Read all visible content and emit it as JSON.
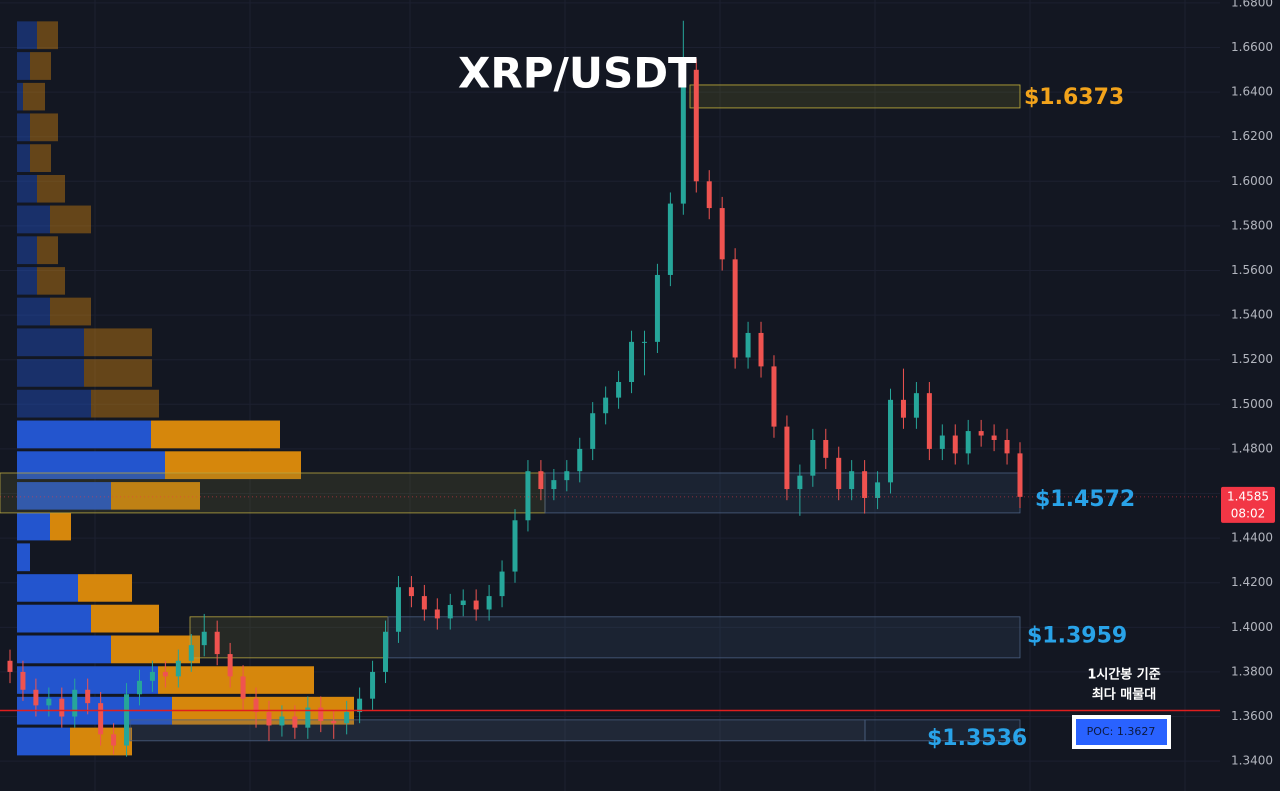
{
  "chart_data": {
    "type": "candlestick",
    "title": "XRP/USDT",
    "ylim": [
      1.3266,
      1.6813
    ],
    "yticks": [
      {
        "value": 1.34,
        "label": "1.3400"
      },
      {
        "value": 1.36,
        "label": "1.3600"
      },
      {
        "value": 1.38,
        "label": "1.3800"
      },
      {
        "value": 1.4,
        "label": "1.4000"
      },
      {
        "value": 1.42,
        "label": "1.4200"
      },
      {
        "value": 1.44,
        "label": "1.4400"
      },
      {
        "value": 1.46,
        "label": "1.4600"
      },
      {
        "value": 1.48,
        "label": "1.4800"
      },
      {
        "value": 1.5,
        "label": "1.5000"
      },
      {
        "value": 1.52,
        "label": "1.5200"
      },
      {
        "value": 1.54,
        "label": "1.5400"
      },
      {
        "value": 1.56,
        "label": "1.5600"
      },
      {
        "value": 1.58,
        "label": "1.5800"
      },
      {
        "value": 1.6,
        "label": "1.6000"
      },
      {
        "value": 1.62,
        "label": "1.6200"
      },
      {
        "value": 1.64,
        "label": "1.6400"
      },
      {
        "value": 1.66,
        "label": "1.6600"
      },
      {
        "value": 1.68,
        "label": "1.6800"
      }
    ],
    "up_color": "#26a69a",
    "down_color": "#ef5350",
    "open": [
      1.385,
      1.38,
      1.372,
      1.365,
      1.368,
      1.36,
      1.372,
      1.366,
      1.352,
      1.347,
      1.37,
      1.376,
      1.38,
      1.378,
      1.385,
      1.392,
      1.398,
      1.388,
      1.378,
      1.368,
      1.362,
      1.356,
      1.36,
      1.355,
      1.364,
      1.358,
      1.357,
      1.362,
      1.368,
      1.38,
      1.398,
      1.418,
      1.414,
      1.408,
      1.404,
      1.41,
      1.412,
      1.408,
      1.414,
      1.425,
      1.448,
      1.47,
      1.462,
      1.466,
      1.47,
      1.48,
      1.496,
      1.503,
      1.51,
      1.528,
      1.528,
      1.558,
      1.59,
      1.65,
      1.6,
      1.588,
      1.565,
      1.521,
      1.532,
      1.517,
      1.49,
      1.462,
      1.468,
      1.484,
      1.476,
      1.462,
      1.47,
      1.458,
      1.465,
      1.502,
      1.494,
      1.505,
      1.48,
      1.486,
      1.478,
      1.488,
      1.486,
      1.484,
      1.478
    ],
    "high": [
      1.39,
      1.385,
      1.377,
      1.373,
      1.373,
      1.377,
      1.377,
      1.371,
      1.357,
      1.375,
      1.381,
      1.385,
      1.385,
      1.39,
      1.397,
      1.406,
      1.403,
      1.393,
      1.383,
      1.373,
      1.367,
      1.365,
      1.365,
      1.369,
      1.369,
      1.363,
      1.367,
      1.373,
      1.385,
      1.403,
      1.423,
      1.423,
      1.419,
      1.413,
      1.415,
      1.417,
      1.417,
      1.419,
      1.43,
      1.453,
      1.475,
      1.475,
      1.471,
      1.475,
      1.485,
      1.501,
      1.508,
      1.515,
      1.533,
      1.533,
      1.563,
      1.595,
      1.672,
      1.655,
      1.605,
      1.593,
      1.57,
      1.537,
      1.537,
      1.522,
      1.495,
      1.473,
      1.489,
      1.489,
      1.481,
      1.475,
      1.475,
      1.47,
      1.507,
      1.516,
      1.51,
      1.51,
      1.491,
      1.491,
      1.493,
      1.493,
      1.491,
      1.489,
      1.483
    ],
    "low": [
      1.375,
      1.367,
      1.36,
      1.36,
      1.355,
      1.355,
      1.361,
      1.347,
      1.343,
      1.342,
      1.365,
      1.371,
      1.373,
      1.373,
      1.38,
      1.387,
      1.383,
      1.373,
      1.363,
      1.355,
      1.349,
      1.351,
      1.35,
      1.35,
      1.353,
      1.35,
      1.352,
      1.357,
      1.363,
      1.375,
      1.393,
      1.409,
      1.403,
      1.399,
      1.399,
      1.405,
      1.403,
      1.403,
      1.409,
      1.42,
      1.443,
      1.457,
      1.457,
      1.461,
      1.465,
      1.475,
      1.491,
      1.498,
      1.505,
      1.513,
      1.523,
      1.553,
      1.585,
      1.595,
      1.583,
      1.56,
      1.516,
      1.516,
      1.512,
      1.485,
      1.457,
      1.45,
      1.463,
      1.471,
      1.457,
      1.457,
      1.451,
      1.453,
      1.46,
      1.489,
      1.489,
      1.475,
      1.475,
      1.473,
      1.473,
      1.481,
      1.479,
      1.473,
      1.4535
    ],
    "close": [
      1.38,
      1.372,
      1.365,
      1.368,
      1.36,
      1.372,
      1.366,
      1.352,
      1.347,
      1.37,
      1.376,
      1.38,
      1.378,
      1.385,
      1.392,
      1.398,
      1.388,
      1.378,
      1.368,
      1.362,
      1.356,
      1.36,
      1.355,
      1.364,
      1.358,
      1.357,
      1.362,
      1.368,
      1.38,
      1.398,
      1.418,
      1.414,
      1.408,
      1.404,
      1.41,
      1.412,
      1.408,
      1.414,
      1.425,
      1.448,
      1.47,
      1.462,
      1.466,
      1.47,
      1.48,
      1.496,
      1.503,
      1.51,
      1.528,
      1.528,
      1.558,
      1.59,
      1.65,
      1.6,
      1.588,
      1.565,
      1.521,
      1.532,
      1.517,
      1.49,
      1.462,
      1.468,
      1.484,
      1.476,
      1.462,
      1.47,
      1.458,
      1.465,
      1.502,
      1.494,
      1.505,
      1.48,
      1.486,
      1.478,
      1.488,
      1.486,
      1.484,
      1.478,
      1.4585
    ],
    "volume_profile": {
      "price_bins": [
        1.3419,
        1.3557,
        1.3695,
        1.3832,
        1.397,
        1.4108,
        1.4245,
        1.4383,
        1.4521,
        1.4658,
        1.4796,
        1.4934,
        1.5072,
        1.5209,
        1.5347,
        1.5485,
        1.5622,
        1.576,
        1.5898,
        1.6035,
        1.6173,
        1.6311,
        1.6448,
        1.6586,
        1.6724
      ],
      "series": [
        {
          "name": "buy",
          "color": "#2458d8",
          "values": [
            53,
            155,
            141,
            94,
            74,
            61,
            13,
            33,
            94,
            148,
            134,
            74,
            67,
            67,
            33,
            20,
            20,
            33,
            20,
            13,
            13,
            6,
            13,
            20
          ]
        },
        {
          "name": "sell",
          "color": "#e08d0c",
          "values": [
            62,
            182,
            156,
            89,
            68,
            54,
            0,
            21,
            89,
            136,
            129,
            68,
            68,
            68,
            41,
            28,
            21,
            41,
            28,
            21,
            28,
            22,
            21,
            21
          ]
        }
      ],
      "highlight": [
        true,
        true,
        true,
        true,
        true,
        true,
        true,
        true,
        true,
        true,
        true,
        false,
        false,
        false,
        false,
        false,
        false,
        false,
        false,
        false,
        false,
        false,
        false,
        false
      ]
    },
    "zones": [
      {
        "label": "$1.6373",
        "value": 1.6373,
        "low": 1.6329,
        "high": 1.6432,
        "color": "#f2a31b"
      },
      {
        "label": "$1.4572",
        "value": 1.4572,
        "low": 1.4513,
        "high": 1.4692,
        "color": "#29a3e8"
      },
      {
        "label": "$1.3959",
        "value": 1.3959,
        "low": 1.3863,
        "high": 1.4047,
        "color": "#29a3e8"
      },
      {
        "label": "$1.3536",
        "value": 1.3536,
        "low": 1.3491,
        "high": 1.3585,
        "color": "#29a3e8"
      }
    ],
    "poc": {
      "value": 1.3627,
      "label": "POC: 1.3627",
      "note_lines": [
        "1시간봉 기준",
        "최다 매물대"
      ],
      "color": "#e01e1e"
    },
    "last_price": {
      "value": 1.4585,
      "label": "1.4585",
      "countdown": "08:02",
      "color": "#f23645"
    }
  }
}
